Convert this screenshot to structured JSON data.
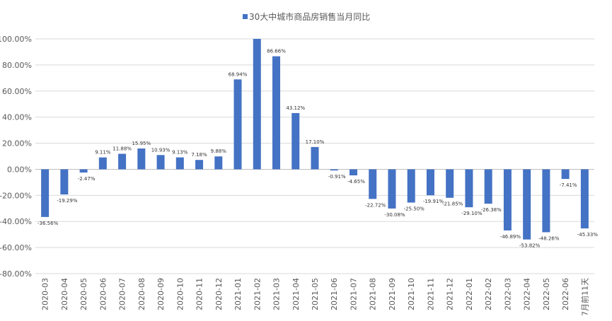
{
  "chart_data": {
    "type": "bar",
    "legend": {
      "label": "30大中城市商品房销售当月同比",
      "position": "top-center"
    },
    "categories": [
      "2020-03",
      "2020-04",
      "2020-05",
      "2020-06",
      "2020-07",
      "2020-08",
      "2020-09",
      "2020-10",
      "2020-11",
      "2020-12",
      "2021-01",
      "2021-02",
      "2021-03",
      "2021-04",
      "2021-05",
      "2021-06",
      "2021-07",
      "2021-08",
      "2021-09",
      "2021-10",
      "2021-11",
      "2021-12",
      "2022-01",
      "2022-02",
      "2022-03",
      "2022-04",
      "2022-05",
      "2022-06",
      "7月前11天"
    ],
    "series": [
      {
        "name": "30大中城市商品房销售当月同比",
        "values": [
          -36.56,
          -19.29,
          -2.47,
          9.11,
          11.88,
          15.95,
          10.93,
          9.13,
          7.18,
          9.88,
          68.94,
          100.0,
          86.66,
          43.12,
          17.1,
          -0.91,
          -4.65,
          -22.72,
          -30.08,
          -25.5,
          -19.91,
          -21.85,
          -29.1,
          -26.38,
          -46.89,
          -53.82,
          -48.26,
          -7.41,
          -45.33
        ],
        "labels": [
          "-36.56%",
          "-19.29%",
          "-2.47%",
          "9.11%",
          "11.88%",
          "15.95%",
          "10.93%",
          "9.13%",
          "7.18%",
          "9.88%",
          "68.94%",
          "",
          "86.66%",
          "43.12%",
          "17.10%",
          "-0.91%",
          "-4.65%",
          "-22.72%",
          "-30.08%",
          "-25.50%",
          "-19.91%",
          "-21.85%",
          "-29.10%",
          "-26.38%",
          "-46.89%",
          "-53.82%",
          "-48.26%",
          "-7.41%",
          "-45.33%"
        ]
      }
    ],
    "ylim": [
      -80,
      100
    ],
    "yticks": [
      "100.00%",
      "80.00%",
      "60.00%",
      "40.00%",
      "20.00%",
      "0.00%",
      "-20.00%",
      "-40.00%",
      "-60.00%",
      "-80.00%"
    ],
    "grid": true,
    "colors": {
      "bar": "#4472C4",
      "grid": "#d9d9d9",
      "text": "#595959"
    }
  }
}
